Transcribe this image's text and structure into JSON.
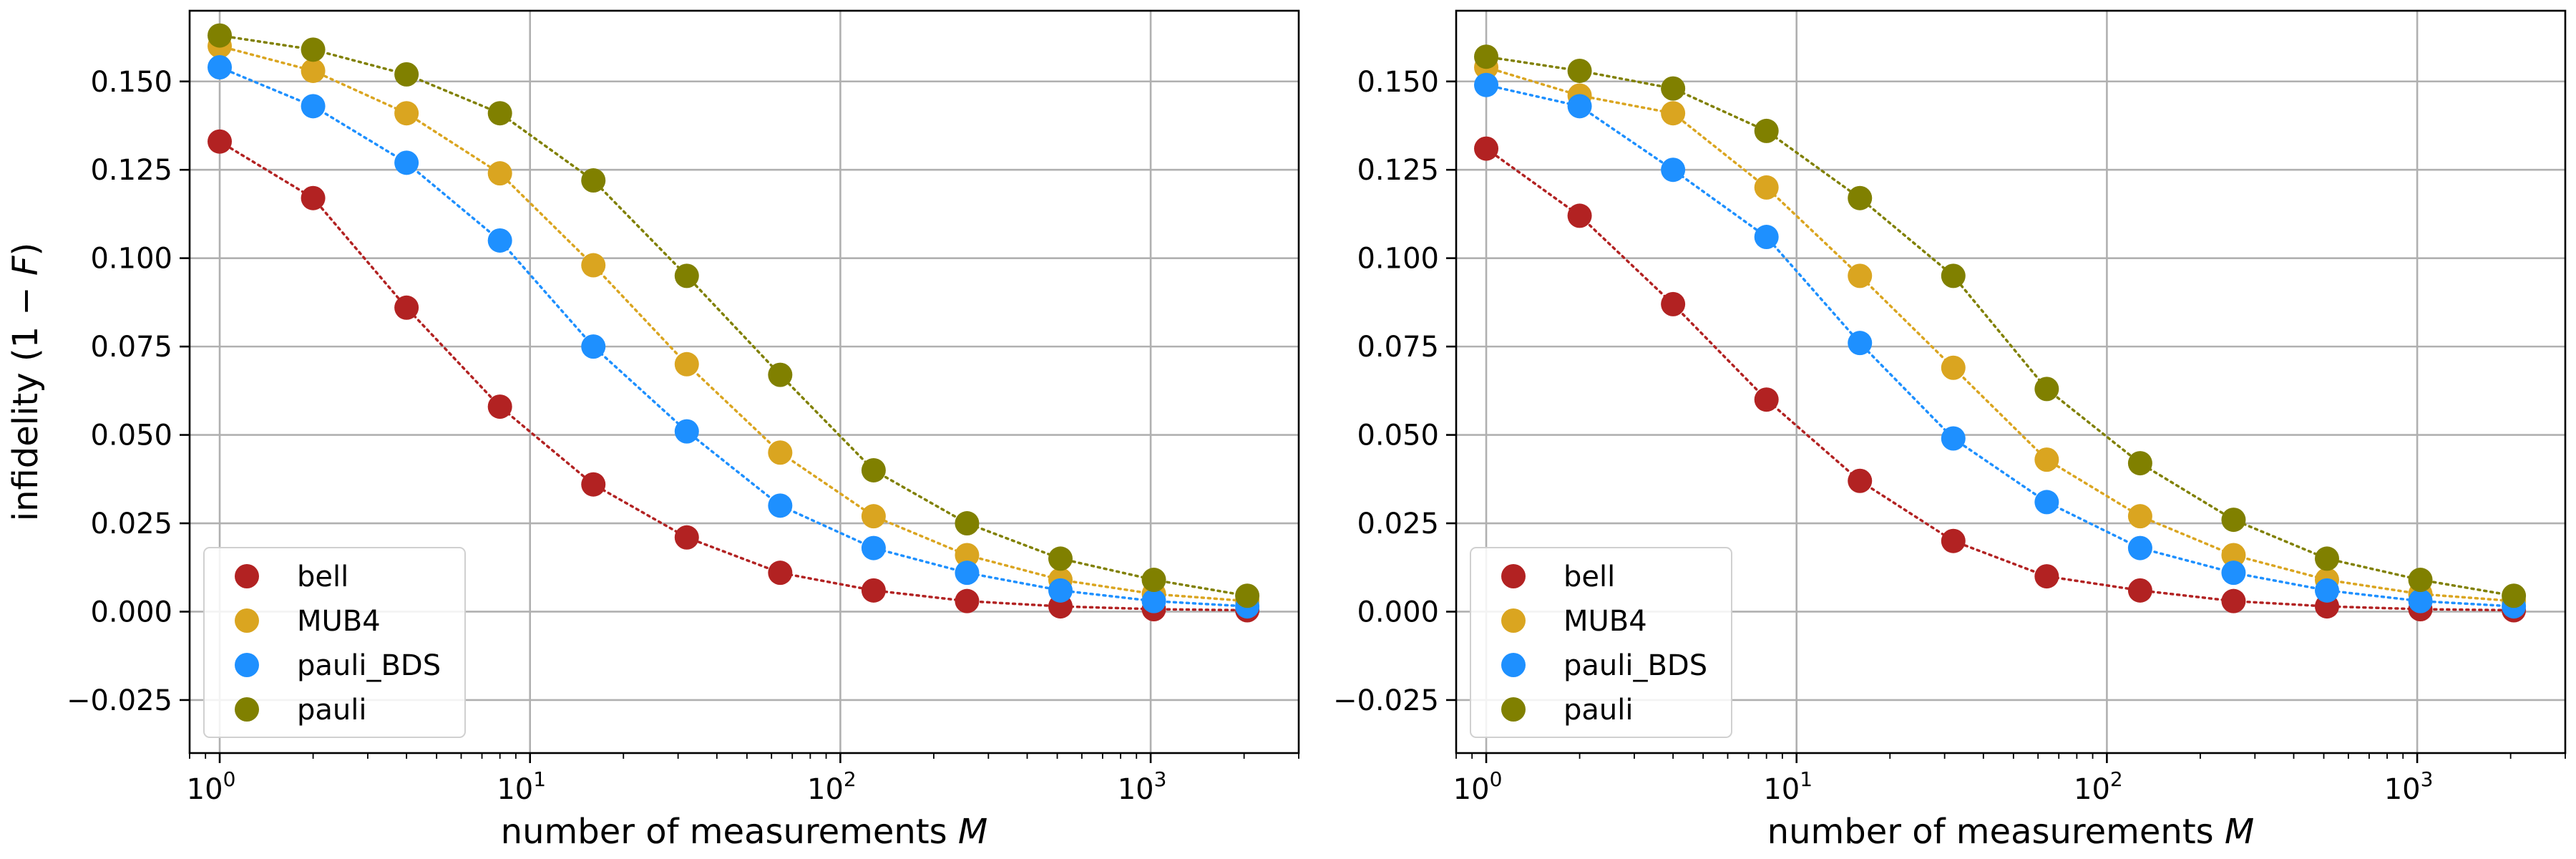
{
  "chart_data": [
    {
      "type": "scatter",
      "xscale": "log",
      "xlabel": "number of measurements M",
      "ylabel": "infidelity (1 − F)",
      "xlim": [
        0.8,
        3000
      ],
      "ylim": [
        -0.04,
        0.17
      ],
      "yticks": [
        -0.025,
        0.0,
        0.025,
        0.05,
        0.075,
        0.1,
        0.125,
        0.15
      ],
      "ytick_labels": [
        "−0.025",
        "0.000",
        "0.025",
        "0.050",
        "0.075",
        "0.100",
        "0.125",
        "0.150"
      ],
      "xticks": [
        1,
        10,
        100,
        1000
      ],
      "xtick_labels": [
        [
          "10",
          "0"
        ],
        [
          "10",
          "1"
        ],
        [
          "10",
          "2"
        ],
        [
          "10",
          "3"
        ]
      ],
      "grid": true,
      "legend_position": "lower-left",
      "x": [
        1,
        2,
        4,
        8,
        16,
        32,
        64,
        128,
        256,
        512,
        1024,
        2048
      ],
      "series": [
        {
          "name": "bell",
          "color": "#b22222",
          "values": [
            0.133,
            0.117,
            0.086,
            0.058,
            0.036,
            0.021,
            0.011,
            0.006,
            0.003,
            0.0015,
            0.0007,
            0.0004
          ]
        },
        {
          "name": "MUB4",
          "color": "#daa520",
          "values": [
            0.16,
            0.153,
            0.141,
            0.124,
            0.098,
            0.07,
            0.045,
            0.027,
            0.016,
            0.009,
            0.005,
            0.003
          ]
        },
        {
          "name": "pauli_BDS",
          "color": "#1e90ff",
          "values": [
            0.154,
            0.143,
            0.127,
            0.105,
            0.075,
            0.051,
            0.03,
            0.018,
            0.011,
            0.006,
            0.003,
            0.0015
          ]
        },
        {
          "name": "pauli",
          "color": "#808000",
          "values": [
            0.163,
            0.159,
            0.152,
            0.141,
            0.122,
            0.095,
            0.067,
            0.04,
            0.025,
            0.015,
            0.009,
            0.0045
          ]
        }
      ]
    },
    {
      "type": "scatter",
      "xscale": "log",
      "xlabel": "number of measurements M",
      "ylabel": "",
      "xlim": [
        0.8,
        3000
      ],
      "ylim": [
        -0.04,
        0.17
      ],
      "yticks": [
        -0.025,
        0.0,
        0.025,
        0.05,
        0.075,
        0.1,
        0.125,
        0.15
      ],
      "ytick_labels": [
        "−0.025",
        "0.000",
        "0.025",
        "0.050",
        "0.075",
        "0.100",
        "0.125",
        "0.150"
      ],
      "xticks": [
        1,
        10,
        100,
        1000
      ],
      "xtick_labels": [
        [
          "10",
          "0"
        ],
        [
          "10",
          "1"
        ],
        [
          "10",
          "2"
        ],
        [
          "10",
          "3"
        ]
      ],
      "grid": true,
      "legend_position": "lower-left",
      "x": [
        1,
        2,
        4,
        8,
        16,
        32,
        64,
        128,
        256,
        512,
        1024,
        2048
      ],
      "series": [
        {
          "name": "bell",
          "color": "#b22222",
          "values": [
            0.131,
            0.112,
            0.087,
            0.06,
            0.037,
            0.02,
            0.01,
            0.006,
            0.003,
            0.0015,
            0.0007,
            0.0004
          ]
        },
        {
          "name": "MUB4",
          "color": "#daa520",
          "values": [
            0.154,
            0.146,
            0.141,
            0.12,
            0.095,
            0.069,
            0.043,
            0.027,
            0.016,
            0.009,
            0.005,
            0.003
          ]
        },
        {
          "name": "pauli_BDS",
          "color": "#1e90ff",
          "values": [
            0.149,
            0.143,
            0.125,
            0.106,
            0.076,
            0.049,
            0.031,
            0.018,
            0.011,
            0.006,
            0.003,
            0.0015
          ]
        },
        {
          "name": "pauli",
          "color": "#808000",
          "values": [
            0.157,
            0.153,
            0.148,
            0.136,
            0.117,
            0.095,
            0.063,
            0.042,
            0.026,
            0.015,
            0.009,
            0.0045
          ]
        }
      ]
    }
  ]
}
